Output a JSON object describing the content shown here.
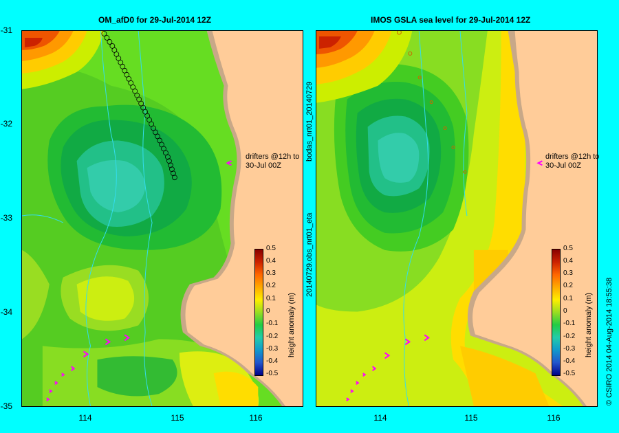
{
  "left_panel": {
    "title": "OM_afD0 for 29-Jul-2014 12Z",
    "drifter_note_line1": "drifters @12h to",
    "drifter_note_line2": "30-Jul 00Z",
    "side_text": ""
  },
  "right_panel": {
    "title": "IMOS GSLA sea level  for 29-Jul-2014 12Z",
    "drifter_note_line1": "drifters @12h to",
    "drifter_note_line2": "30-Jul 00Z",
    "side_text_top": "bodas_nrt01_20140729",
    "side_text_bottom": "20140729.obs_nrt01_eta"
  },
  "y_ticks": [
    "-31",
    "-32",
    "-33",
    "-34",
    "-35"
  ],
  "x_ticks": [
    "114",
    "115",
    "116"
  ],
  "colorbar": {
    "label": "height anomaly (m)",
    "ticks": [
      "0.5",
      "0.4",
      "0.3",
      "0.2",
      "0.1",
      "0",
      "-0.1",
      "-0.2",
      "-0.3",
      "-0.4",
      "-0.5"
    ]
  },
  "credit": "© CSIRO 2014   04-Aug-2014 18:55:38",
  "colors": {
    "background": "#00ffff",
    "land": "#ffcc99",
    "coast": "#c8a888",
    "drifter_arrow": "#ff00ff"
  }
}
